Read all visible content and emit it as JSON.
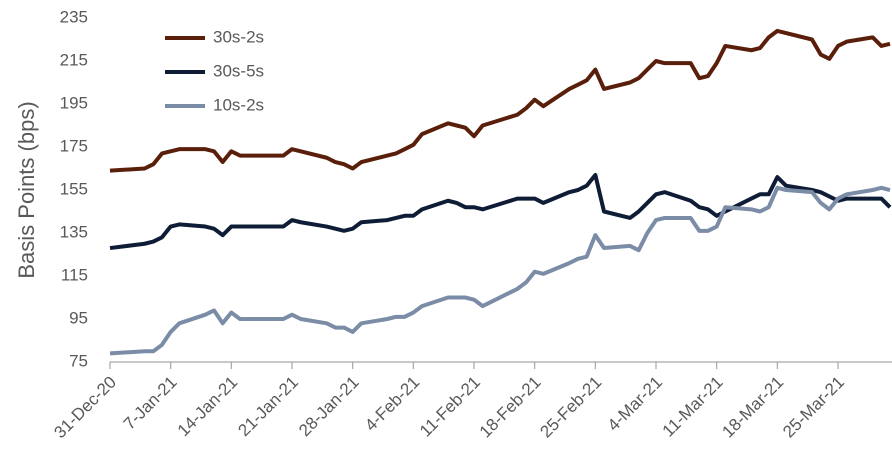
{
  "chart_data": {
    "type": "line",
    "y_label": "Basis Points (bps)",
    "x": [
      "2020-12-31",
      "2021-01-04",
      "2021-01-05",
      "2021-01-06",
      "2021-01-07",
      "2021-01-08",
      "2021-01-11",
      "2021-01-12",
      "2021-01-13",
      "2021-01-14",
      "2021-01-15",
      "2021-01-19",
      "2021-01-20",
      "2021-01-21",
      "2021-01-22",
      "2021-01-25",
      "2021-01-26",
      "2021-01-27",
      "2021-01-28",
      "2021-01-29",
      "2021-02-01",
      "2021-02-02",
      "2021-02-03",
      "2021-02-04",
      "2021-02-05",
      "2021-02-08",
      "2021-02-09",
      "2021-02-10",
      "2021-02-11",
      "2021-02-12",
      "2021-02-16",
      "2021-02-17",
      "2021-02-18",
      "2021-02-19",
      "2021-02-22",
      "2021-02-23",
      "2021-02-24",
      "2021-02-25",
      "2021-02-26",
      "2021-03-01",
      "2021-03-02",
      "2021-03-03",
      "2021-03-04",
      "2021-03-05",
      "2021-03-08",
      "2021-03-09",
      "2021-03-10",
      "2021-03-11",
      "2021-03-12",
      "2021-03-15",
      "2021-03-16",
      "2021-03-17",
      "2021-03-18",
      "2021-03-19",
      "2021-03-22",
      "2021-03-23",
      "2021-03-24",
      "2021-03-25",
      "2021-03-26",
      "2021-03-29",
      "2021-03-30",
      "2021-03-31"
    ],
    "series": [
      {
        "name": "30s-2s",
        "color": "#5a1f0b",
        "values": [
          164,
          165,
          167,
          172,
          173,
          174,
          174,
          173,
          168,
          173,
          171,
          171,
          171,
          174,
          173,
          170,
          168,
          167,
          165,
          168,
          171,
          172,
          174,
          176,
          181,
          186,
          185,
          184,
          180,
          185,
          190,
          193,
          197,
          194,
          202,
          204,
          206,
          211,
          202,
          205,
          207,
          211,
          215,
          214,
          214,
          207,
          208,
          214,
          222,
          220,
          221,
          226,
          229,
          228,
          225,
          218,
          216,
          222,
          224,
          226,
          222,
          223
        ]
      },
      {
        "name": "30s-5s",
        "color": "#0e1c36",
        "values": [
          128,
          130,
          131,
          133,
          138,
          139,
          138,
          137,
          134,
          138,
          138,
          138,
          138,
          141,
          140,
          138,
          137,
          136,
          137,
          140,
          141,
          142,
          143,
          143,
          146,
          150,
          149,
          147,
          147,
          146,
          151,
          151,
          151,
          149,
          154,
          155,
          157,
          162,
          145,
          142,
          145,
          149,
          153,
          154,
          150,
          147,
          146,
          143,
          145,
          151,
          153,
          153,
          161,
          157,
          155,
          154,
          152,
          150,
          151,
          151,
          151,
          147
        ]
      },
      {
        "name": "10s-2s",
        "color": "#7b8ca6",
        "values": [
          79,
          80,
          80,
          83,
          89,
          93,
          97,
          99,
          93,
          98,
          95,
          95,
          95,
          97,
          95,
          93,
          91,
          91,
          89,
          93,
          95,
          96,
          96,
          98,
          101,
          105,
          105,
          105,
          104,
          101,
          109,
          112,
          117,
          116,
          121,
          123,
          124,
          134,
          128,
          129,
          127,
          135,
          141,
          142,
          142,
          136,
          136,
          138,
          147,
          146,
          145,
          147,
          156,
          155,
          154,
          149,
          146,
          151,
          153,
          155,
          156,
          155
        ]
      }
    ],
    "xlim": [
      "2020-12-31",
      "2021-03-31"
    ],
    "xticks": [
      {
        "value": "2020-12-31",
        "label": "31-Dec-20"
      },
      {
        "value": "2021-01-07",
        "label": "7-Jan-21"
      },
      {
        "value": "2021-01-14",
        "label": "14-Jan-21"
      },
      {
        "value": "2021-01-21",
        "label": "21-Jan-21"
      },
      {
        "value": "2021-01-28",
        "label": "28-Jan-21"
      },
      {
        "value": "2021-02-04",
        "label": "4-Feb-21"
      },
      {
        "value": "2021-02-11",
        "label": "11-Feb-21"
      },
      {
        "value": "2021-02-18",
        "label": "18-Feb-21"
      },
      {
        "value": "2021-02-25",
        "label": "25-Feb-21"
      },
      {
        "value": "2021-03-04",
        "label": "4-Mar-21"
      },
      {
        "value": "2021-03-11",
        "label": "11-Mar-21"
      },
      {
        "value": "2021-03-18",
        "label": "18-Mar-21"
      },
      {
        "value": "2021-03-25",
        "label": "25-Mar-21"
      }
    ],
    "ylim": [
      75,
      235
    ],
    "yticks": [
      75,
      95,
      115,
      135,
      155,
      175,
      195,
      215,
      235
    ],
    "grid": false,
    "legend": "upper left"
  }
}
